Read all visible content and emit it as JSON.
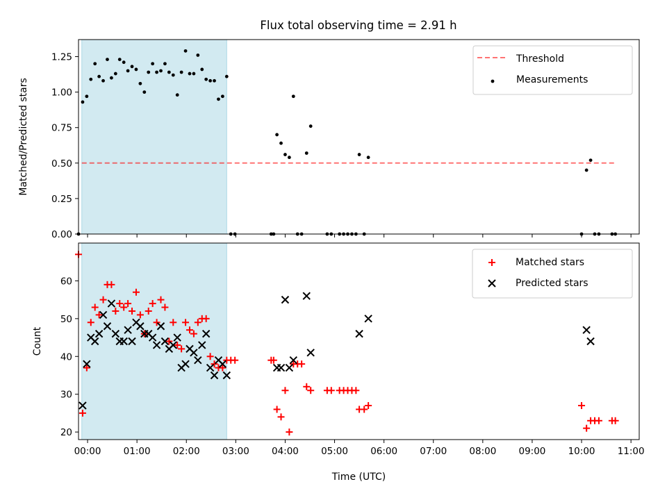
{
  "figure_title": "Flux total observing time = 2.91 h",
  "colors": {
    "shade": "#add8e6",
    "threshold": "#ff0000",
    "measurements": "#000000",
    "matched": "#ff0000",
    "predicted": "#000000"
  },
  "chart_data": [
    {
      "type": "scatter",
      "title": "Flux total observing time = 2.91 h",
      "xlabel": "",
      "ylabel": "Matched/Predicted stars",
      "xlim": [
        "23:49",
        "11:10"
      ],
      "ylim": [
        0,
        1.37
      ],
      "x_ticks": [
        "00:00",
        "01:00",
        "02:00",
        "03:00",
        "04:00",
        "05:00",
        "06:00",
        "07:00",
        "08:00",
        "09:00",
        "10:00",
        "11:00"
      ],
      "y_ticks": [
        "0.00",
        "0.25",
        "0.50",
        "0.75",
        "1.00",
        "1.25"
      ],
      "shaded_interval": [
        "23:53",
        "02:49"
      ],
      "legend": {
        "placement": "upper right",
        "entries": [
          "Threshold",
          "Measurements"
        ]
      },
      "threshold": {
        "name": "Threshold",
        "y": 0.5,
        "x_range": [
          "23:53",
          "10:42"
        ],
        "style": "dashed"
      },
      "series": [
        {
          "name": "Measurements",
          "marker": "dot",
          "points": [
            [
              "23:49",
              0.0
            ],
            [
              "23:54",
              0.93
            ],
            [
              "23:59",
              0.97
            ],
            [
              "00:04",
              1.09
            ],
            [
              "00:09",
              1.2
            ],
            [
              "00:14",
              1.11
            ],
            [
              "00:19",
              1.08
            ],
            [
              "00:24",
              1.23
            ],
            [
              "00:29",
              1.1
            ],
            [
              "00:34",
              1.13
            ],
            [
              "00:39",
              1.23
            ],
            [
              "00:44",
              1.21
            ],
            [
              "00:49",
              1.15
            ],
            [
              "00:54",
              1.18
            ],
            [
              "00:59",
              1.16
            ],
            [
              "01:04",
              1.06
            ],
            [
              "01:09",
              1.0
            ],
            [
              "01:14",
              1.14
            ],
            [
              "01:19",
              1.2
            ],
            [
              "01:24",
              1.14
            ],
            [
              "01:29",
              1.15
            ],
            [
              "01:34",
              1.2
            ],
            [
              "01:39",
              1.14
            ],
            [
              "01:44",
              1.12
            ],
            [
              "01:49",
              0.98
            ],
            [
              "01:54",
              1.14
            ],
            [
              "01:59",
              1.29
            ],
            [
              "02:04",
              1.13
            ],
            [
              "02:09",
              1.13
            ],
            [
              "02:14",
              1.26
            ],
            [
              "02:19",
              1.16
            ],
            [
              "02:24",
              1.09
            ],
            [
              "02:29",
              1.08
            ],
            [
              "02:34",
              1.08
            ],
            [
              "02:39",
              0.95
            ],
            [
              "02:44",
              0.97
            ],
            [
              "02:49",
              1.11
            ],
            [
              "02:54",
              0.0
            ],
            [
              "02:59",
              0.0
            ],
            [
              "03:43",
              0.0
            ],
            [
              "03:46",
              0.0
            ],
            [
              "03:50",
              0.7
            ],
            [
              "03:55",
              0.64
            ],
            [
              "04:00",
              0.56
            ],
            [
              "04:05",
              0.54
            ],
            [
              "04:10",
              0.97
            ],
            [
              "04:15",
              0.0
            ],
            [
              "04:20",
              0.0
            ],
            [
              "04:26",
              0.57
            ],
            [
              "04:31",
              0.76
            ],
            [
              "04:51",
              0.0
            ],
            [
              "04:56",
              0.0
            ],
            [
              "05:06",
              0.0
            ],
            [
              "05:11",
              0.0
            ],
            [
              "05:16",
              0.0
            ],
            [
              "05:21",
              0.0
            ],
            [
              "05:26",
              0.0
            ],
            [
              "05:30",
              0.56
            ],
            [
              "05:36",
              0.0
            ],
            [
              "05:41",
              0.54
            ],
            [
              "10:00",
              0.0
            ],
            [
              "10:06",
              0.45
            ],
            [
              "10:11",
              0.52
            ],
            [
              "10:16",
              0.0
            ],
            [
              "10:21",
              0.0
            ],
            [
              "10:37",
              0.0
            ],
            [
              "10:41",
              0.0
            ]
          ]
        }
      ]
    },
    {
      "type": "scatter",
      "title": "",
      "xlabel": "Time (UTC)",
      "ylabel": "Count",
      "xlim": [
        "23:49",
        "11:10"
      ],
      "ylim": [
        18,
        70
      ],
      "x_ticks": [
        "00:00",
        "01:00",
        "02:00",
        "03:00",
        "04:00",
        "05:00",
        "06:00",
        "07:00",
        "08:00",
        "09:00",
        "10:00",
        "11:00"
      ],
      "y_ticks": [
        "20",
        "30",
        "40",
        "50",
        "60"
      ],
      "shaded_interval": [
        "23:53",
        "02:49"
      ],
      "legend": {
        "placement": "upper right",
        "entries": [
          "Matched stars",
          "Predicted stars"
        ]
      },
      "series": [
        {
          "name": "Matched stars",
          "marker": "plus",
          "points": [
            [
              "23:49",
              67
            ],
            [
              "23:54",
              25
            ],
            [
              "23:59",
              37
            ],
            [
              "00:04",
              49
            ],
            [
              "00:09",
              53
            ],
            [
              "00:14",
              51
            ],
            [
              "00:19",
              55
            ],
            [
              "00:24",
              59
            ],
            [
              "00:29",
              59
            ],
            [
              "00:34",
              52
            ],
            [
              "00:39",
              54
            ],
            [
              "00:44",
              53
            ],
            [
              "00:49",
              54
            ],
            [
              "00:54",
              52
            ],
            [
              "00:59",
              57
            ],
            [
              "01:04",
              51
            ],
            [
              "01:09",
              46
            ],
            [
              "01:14",
              52
            ],
            [
              "01:19",
              54
            ],
            [
              "01:24",
              49
            ],
            [
              "01:29",
              55
            ],
            [
              "01:34",
              53
            ],
            [
              "01:39",
              44
            ],
            [
              "01:44",
              49
            ],
            [
              "01:49",
              43
            ],
            [
              "01:54",
              42
            ],
            [
              "01:59",
              49
            ],
            [
              "02:04",
              47
            ],
            [
              "02:09",
              46
            ],
            [
              "02:14",
              49
            ],
            [
              "02:19",
              50
            ],
            [
              "02:24",
              50
            ],
            [
              "02:29",
              40
            ],
            [
              "02:34",
              38
            ],
            [
              "02:39",
              37
            ],
            [
              "02:44",
              37
            ],
            [
              "02:49",
              39
            ],
            [
              "02:54",
              39
            ],
            [
              "02:59",
              39
            ],
            [
              "03:43",
              39
            ],
            [
              "03:46",
              39
            ],
            [
              "03:50",
              26
            ],
            [
              "03:55",
              24
            ],
            [
              "04:00",
              31
            ],
            [
              "04:05",
              20
            ],
            [
              "04:10",
              38
            ],
            [
              "04:15",
              38
            ],
            [
              "04:20",
              38
            ],
            [
              "04:26",
              32
            ],
            [
              "04:31",
              31
            ],
            [
              "04:51",
              31
            ],
            [
              "04:56",
              31
            ],
            [
              "05:06",
              31
            ],
            [
              "05:11",
              31
            ],
            [
              "05:16",
              31
            ],
            [
              "05:21",
              31
            ],
            [
              "05:26",
              31
            ],
            [
              "05:30",
              26
            ],
            [
              "05:36",
              26
            ],
            [
              "05:41",
              27
            ],
            [
              "10:00",
              27
            ],
            [
              "10:06",
              21
            ],
            [
              "10:11",
              23
            ],
            [
              "10:16",
              23
            ],
            [
              "10:21",
              23
            ],
            [
              "10:37",
              23
            ],
            [
              "10:41",
              23
            ]
          ]
        },
        {
          "name": "Predicted stars",
          "marker": "x",
          "points": [
            [
              "23:54",
              27
            ],
            [
              "23:59",
              38
            ],
            [
              "00:04",
              45
            ],
            [
              "00:09",
              44
            ],
            [
              "00:14",
              46
            ],
            [
              "00:19",
              51
            ],
            [
              "00:24",
              48
            ],
            [
              "00:29",
              54
            ],
            [
              "00:34",
              46
            ],
            [
              "00:39",
              44
            ],
            [
              "00:44",
              44
            ],
            [
              "00:49",
              47
            ],
            [
              "00:54",
              44
            ],
            [
              "00:59",
              49
            ],
            [
              "01:04",
              48
            ],
            [
              "01:09",
              46
            ],
            [
              "01:14",
              46
            ],
            [
              "01:19",
              45
            ],
            [
              "01:24",
              43
            ],
            [
              "01:29",
              48
            ],
            [
              "01:34",
              44
            ],
            [
              "01:39",
              42
            ],
            [
              "01:44",
              43
            ],
            [
              "01:49",
              45
            ],
            [
              "01:54",
              37
            ],
            [
              "01:59",
              38
            ],
            [
              "02:04",
              42
            ],
            [
              "02:09",
              41
            ],
            [
              "02:14",
              39
            ],
            [
              "02:19",
              43
            ],
            [
              "02:24",
              46
            ],
            [
              "02:29",
              37
            ],
            [
              "02:34",
              35
            ],
            [
              "02:39",
              39
            ],
            [
              "02:44",
              38
            ],
            [
              "02:49",
              35
            ],
            [
              "03:50",
              37
            ],
            [
              "03:55",
              37
            ],
            [
              "04:00",
              55
            ],
            [
              "04:05",
              37
            ],
            [
              "04:10",
              39
            ],
            [
              "04:26",
              56
            ],
            [
              "04:31",
              41
            ],
            [
              "05:30",
              46
            ],
            [
              "05:41",
              50
            ],
            [
              "10:06",
              47
            ],
            [
              "10:11",
              44
            ]
          ]
        }
      ]
    }
  ]
}
